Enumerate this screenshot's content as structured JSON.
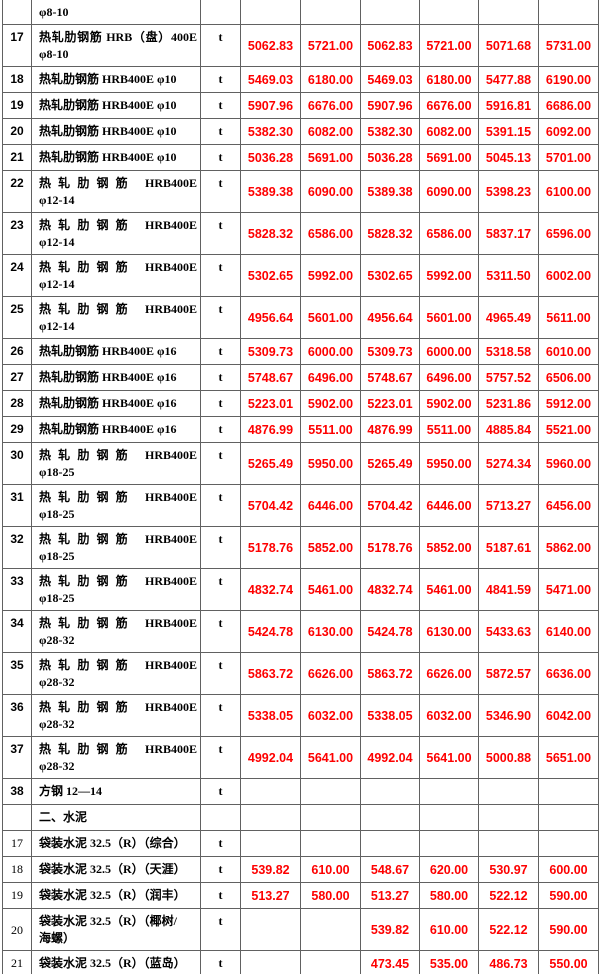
{
  "colors": {
    "price_text": "#fe0000",
    "body_text": "#000000",
    "grid_border": "#616161",
    "background": "#ffffff"
  },
  "table": {
    "unit_symbol": "t",
    "rows": [
      {
        "no": "",
        "style": "steel",
        "partial": true,
        "name": [
          "φ8-10"
        ],
        "unit": "",
        "prices": [
          "",
          "",
          "",
          "",
          "",
          ""
        ]
      },
      {
        "no": "17",
        "style": "steel",
        "name": [
          "热轧肋钢筋 HRB（盘）400E",
          "φ8-10"
        ],
        "unit": "t",
        "prices": [
          "5062.83",
          "5721.00",
          "5062.83",
          "5721.00",
          "5071.68",
          "5731.00"
        ]
      },
      {
        "no": "18",
        "style": "steel",
        "name": [
          "热轧肋钢筋 HRB400E φ10"
        ],
        "unit": "t",
        "prices": [
          "5469.03",
          "6180.00",
          "5469.03",
          "6180.00",
          "5477.88",
          "6190.00"
        ]
      },
      {
        "no": "19",
        "style": "steel",
        "name": [
          "热轧肋钢筋 HRB400E φ10"
        ],
        "unit": "t",
        "prices": [
          "5907.96",
          "6676.00",
          "5907.96",
          "6676.00",
          "5916.81",
          "6686.00"
        ]
      },
      {
        "no": "20",
        "style": "steel",
        "name": [
          "热轧肋钢筋 HRB400E φ10"
        ],
        "unit": "t",
        "prices": [
          "5382.30",
          "6082.00",
          "5382.30",
          "6082.00",
          "5391.15",
          "6092.00"
        ]
      },
      {
        "no": "21",
        "style": "steel",
        "name": [
          "热轧肋钢筋 HRB400E φ10"
        ],
        "unit": "t",
        "prices": [
          "5036.28",
          "5691.00",
          "5036.28",
          "5691.00",
          "5045.13",
          "5701.00"
        ]
      },
      {
        "no": "22",
        "style": "steel",
        "name": [
          "热轧肋钢筋 HRB400E",
          "φ12-14"
        ],
        "unit": "t",
        "prices": [
          "5389.38",
          "6090.00",
          "5389.38",
          "6090.00",
          "5398.23",
          "6100.00"
        ]
      },
      {
        "no": "23",
        "style": "steel",
        "name": [
          "热轧肋钢筋 HRB400E",
          "φ12-14"
        ],
        "unit": "t",
        "prices": [
          "5828.32",
          "6586.00",
          "5828.32",
          "6586.00",
          "5837.17",
          "6596.00"
        ]
      },
      {
        "no": "24",
        "style": "steel",
        "name": [
          "热轧肋钢筋 HRB400E",
          "φ12-14"
        ],
        "unit": "t",
        "prices": [
          "5302.65",
          "5992.00",
          "5302.65",
          "5992.00",
          "5311.50",
          "6002.00"
        ]
      },
      {
        "no": "25",
        "style": "steel",
        "name": [
          "热轧肋钢筋 HRB400E",
          "φ12-14"
        ],
        "unit": "t",
        "prices": [
          "4956.64",
          "5601.00",
          "4956.64",
          "5601.00",
          "4965.49",
          "5611.00"
        ]
      },
      {
        "no": "26",
        "style": "steel",
        "name": [
          "热轧肋钢筋 HRB400E φ16"
        ],
        "unit": "t",
        "prices": [
          "5309.73",
          "6000.00",
          "5309.73",
          "6000.00",
          "5318.58",
          "6010.00"
        ]
      },
      {
        "no": "27",
        "style": "steel",
        "name": [
          "热轧肋钢筋 HRB400E φ16"
        ],
        "unit": "t",
        "prices": [
          "5748.67",
          "6496.00",
          "5748.67",
          "6496.00",
          "5757.52",
          "6506.00"
        ]
      },
      {
        "no": "28",
        "style": "steel",
        "name": [
          "热轧肋钢筋 HRB400E φ16"
        ],
        "unit": "t",
        "prices": [
          "5223.01",
          "5902.00",
          "5223.01",
          "5902.00",
          "5231.86",
          "5912.00"
        ]
      },
      {
        "no": "29",
        "style": "steel",
        "name": [
          "热轧肋钢筋 HRB400E φ16"
        ],
        "unit": "t",
        "prices": [
          "4876.99",
          "5511.00",
          "4876.99",
          "5511.00",
          "4885.84",
          "5521.00"
        ]
      },
      {
        "no": "30",
        "style": "steel",
        "name": [
          "热轧肋钢筋 HRB400E",
          "φ18-25"
        ],
        "unit": "t",
        "prices": [
          "5265.49",
          "5950.00",
          "5265.49",
          "5950.00",
          "5274.34",
          "5960.00"
        ]
      },
      {
        "no": "31",
        "style": "steel",
        "name": [
          "热轧肋钢筋 HRB400E",
          "φ18-25"
        ],
        "unit": "t",
        "prices": [
          "5704.42",
          "6446.00",
          "5704.42",
          "6446.00",
          "5713.27",
          "6456.00"
        ]
      },
      {
        "no": "32",
        "style": "steel",
        "name": [
          "热轧肋钢筋 HRB400E",
          "φ18-25"
        ],
        "unit": "t",
        "prices": [
          "5178.76",
          "5852.00",
          "5178.76",
          "5852.00",
          "5187.61",
          "5862.00"
        ]
      },
      {
        "no": "33",
        "style": "steel",
        "name": [
          "热轧肋钢筋 HRB400E",
          "φ18-25"
        ],
        "unit": "t",
        "prices": [
          "4832.74",
          "5461.00",
          "4832.74",
          "5461.00",
          "4841.59",
          "5471.00"
        ]
      },
      {
        "no": "34",
        "style": "steel",
        "name": [
          "热轧肋钢筋 HRB400E",
          "φ28-32"
        ],
        "unit": "t",
        "prices": [
          "5424.78",
          "6130.00",
          "5424.78",
          "6130.00",
          "5433.63",
          "6140.00"
        ]
      },
      {
        "no": "35",
        "style": "steel",
        "name": [
          "热轧肋钢筋 HRB400E",
          "φ28-32"
        ],
        "unit": "t",
        "prices": [
          "5863.72",
          "6626.00",
          "5863.72",
          "6626.00",
          "5872.57",
          "6636.00"
        ]
      },
      {
        "no": "36",
        "style": "steel",
        "name": [
          "热轧肋钢筋 HRB400E",
          "φ28-32"
        ],
        "unit": "t",
        "prices": [
          "5338.05",
          "6032.00",
          "5338.05",
          "6032.00",
          "5346.90",
          "6042.00"
        ]
      },
      {
        "no": "37",
        "style": "steel",
        "name": [
          "热轧肋钢筋 HRB400E",
          "φ28-32"
        ],
        "unit": "t",
        "prices": [
          "4992.04",
          "5641.00",
          "4992.04",
          "5641.00",
          "5000.88",
          "5651.00"
        ]
      },
      {
        "no": "38",
        "style": "steel",
        "name": [
          "方钢 12—14"
        ],
        "unit": "t",
        "prices": [
          "",
          "",
          "",
          "",
          "",
          ""
        ]
      },
      {
        "no": "",
        "style": "steel",
        "section": true,
        "name": [
          "二、水泥"
        ],
        "unit": "",
        "prices": [
          "",
          "",
          "",
          "",
          "",
          ""
        ]
      },
      {
        "no": "17",
        "style": "cement",
        "name": [
          "袋装水泥 32.5（R）（综合）"
        ],
        "unit": "t",
        "prices": [
          "",
          "",
          "",
          "",
          "",
          ""
        ]
      },
      {
        "no": "18",
        "style": "cement",
        "name": [
          "袋装水泥 32.5（R）（天涯）"
        ],
        "unit": "t",
        "prices": [
          "539.82",
          "610.00",
          "548.67",
          "620.00",
          "530.97",
          "600.00"
        ]
      },
      {
        "no": "19",
        "style": "cement",
        "name": [
          "袋装水泥 32.5（R）（润丰）"
        ],
        "unit": "t",
        "prices": [
          "513.27",
          "580.00",
          "513.27",
          "580.00",
          "522.12",
          "590.00"
        ]
      },
      {
        "no": "20",
        "style": "cement",
        "center_no": true,
        "name": [
          "袋装水泥 32.5（R）（椰树/",
          "海螺）"
        ],
        "unit": "t",
        "prices": [
          "",
          "",
          "539.82",
          "610.00",
          "522.12",
          "590.00"
        ]
      },
      {
        "no": "21",
        "style": "cement",
        "name": [
          "袋装水泥 32.5（R）（蓝岛）"
        ],
        "unit": "t",
        "prices": [
          "",
          "",
          "473.45",
          "535.00",
          "486.73",
          "550.00"
        ]
      }
    ]
  }
}
